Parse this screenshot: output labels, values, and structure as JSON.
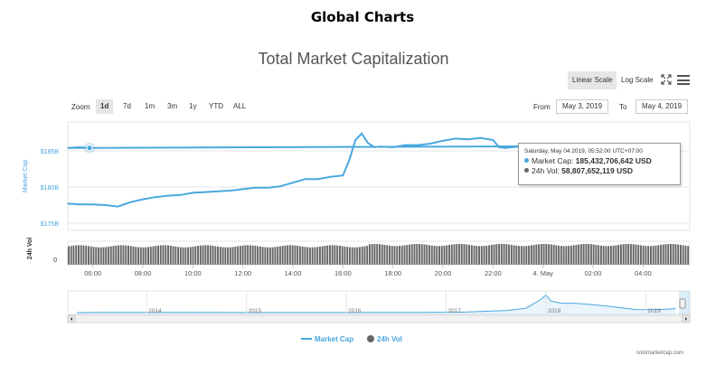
{
  "page": {
    "title": "Global Charts",
    "credit": "coinmarketcap.com"
  },
  "toolbar": {
    "linear_label": "Linear Scale",
    "log_label": "Log Scale",
    "zoom_label": "Zoom",
    "zoom_options": [
      "1d",
      "7d",
      "1m",
      "3m",
      "1y",
      "YTD",
      "ALL"
    ],
    "zoom_selected": "1d",
    "from_label": "From",
    "from_value": "May 3, 2019",
    "to_label": "To",
    "to_value": "May 4, 2019"
  },
  "tooltip": {
    "date": "Saturday, May 04 2019, 05:52:00 UTC+07:00",
    "market_cap_label": "Market Cap:",
    "market_cap_value": "185,432,706,642 USD",
    "volume_label": "24h Vol:",
    "volume_value": "58,807,652,119 USD"
  },
  "colors": {
    "market_cap": "#4aa7dd",
    "volume": "#666666",
    "navigator_line": "#4aa7dd"
  },
  "chart_data": {
    "type": "line",
    "title": "Total Market Capitalization",
    "x_range": [
      "2019-05-03T05:00",
      "2019-05-04T05:52"
    ],
    "x_ticks": [
      "06:00",
      "08:00",
      "10:00",
      "12:00",
      "14:00",
      "16:00",
      "18:00",
      "20:00",
      "22:00",
      "4. May",
      "02:00",
      "04:00"
    ],
    "y_axis": {
      "label": "Market Cap",
      "ticks": [
        "$175B",
        "$180B",
        "$185B"
      ],
      "ylim": [
        174,
        189
      ]
    },
    "volume_axis": {
      "label": "24h Vol",
      "ticks": [
        "0"
      ]
    },
    "series": [
      {
        "name": "Market Cap",
        "unit": "B USD",
        "x": [
          "05:00",
          "05:30",
          "06:00",
          "06:30",
          "07:00",
          "07:30",
          "08:00",
          "08:30",
          "09:00",
          "09:30",
          "10:00",
          "10:30",
          "11:00",
          "11:30",
          "12:00",
          "12:30",
          "13:00",
          "13:30",
          "14:00",
          "14:30",
          "15:00",
          "15:30",
          "16:00",
          "16:15",
          "16:30",
          "16:45",
          "17:00",
          "17:15",
          "17:30",
          "18:00",
          "18:30",
          "19:00",
          "19:30",
          "20:00",
          "20:30",
          "21:00",
          "21:30",
          "22:00",
          "22:15",
          "22:30",
          "23:00",
          "23:30",
          "00:00",
          "00:30",
          "01:00",
          "01:30",
          "02:00",
          "02:30",
          "03:00",
          "03:30",
          "04:00",
          "04:30",
          "05:00",
          "05:30",
          "05:52"
        ],
        "values": [
          177.7,
          177.6,
          177.6,
          177.5,
          177.3,
          177.9,
          178.3,
          178.6,
          178.8,
          178.9,
          179.2,
          179.3,
          179.4,
          179.5,
          179.7,
          179.9,
          179.9,
          180.1,
          180.6,
          181.1,
          181.1,
          181.4,
          181.6,
          183.7,
          186.5,
          187.4,
          186.1,
          185.5,
          185.6,
          185.5,
          185.8,
          185.8,
          186.0,
          186.4,
          186.7,
          186.6,
          186.8,
          186.5,
          185.5,
          185.4,
          185.6,
          185.5,
          185.5,
          185.4,
          185.5,
          185.6,
          185.4,
          185.6,
          185.5,
          185.7,
          185.6,
          185.7,
          185.4,
          185.5,
          185.4
        ]
      },
      {
        "name": "24h Vol",
        "unit": "B USD",
        "note_values": "relative bar heights are nearly constant",
        "values_range": [
          56,
          59
        ]
      }
    ],
    "navigator": {
      "x_ticks": [
        "2014",
        "2015",
        "2016",
        "2017",
        "2018",
        "2019"
      ],
      "years": [
        2013.3,
        2013.8,
        2014.3,
        2014.8,
        2015.3,
        2015.8,
        2016.3,
        2016.8,
        2017.2,
        2017.4,
        2017.6,
        2017.8,
        2017.95,
        2018.0,
        2018.05,
        2018.15,
        2018.3,
        2018.5,
        2018.7,
        2018.9,
        2019.1,
        2019.3
      ],
      "market_cap_b": [
        1.5,
        12,
        8,
        5,
        4,
        5,
        8,
        12,
        25,
        60,
        95,
        200,
        600,
        800,
        520,
        430,
        420,
        350,
        250,
        140,
        130,
        180
      ]
    }
  },
  "legend": {
    "market_cap": "Market Cap",
    "volume": "24h Vol"
  }
}
